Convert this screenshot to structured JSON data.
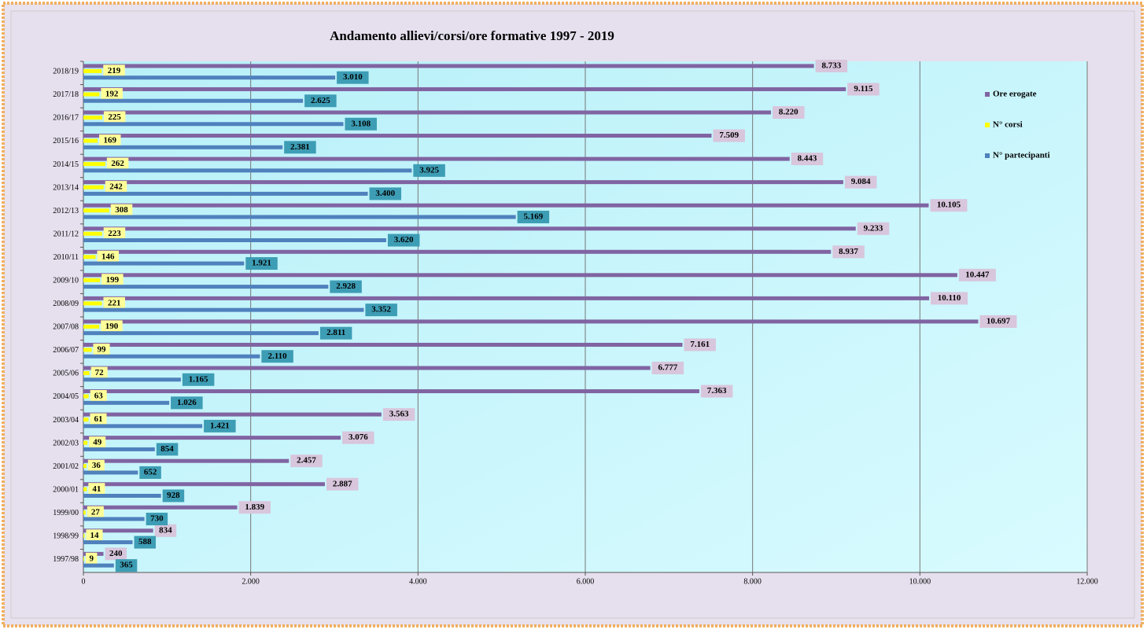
{
  "chart_data": {
    "type": "hbar",
    "title": "Andamento allievi/corsi/ore formative 1997 - 2019",
    "categories": [
      "1997/98",
      "1998/99",
      "1999/00",
      "2000/01",
      "2001/02",
      "2002/03",
      "2003/04",
      "2004/05",
      "2005/06",
      "2006/07",
      "2007/08",
      "2008/09",
      "2009/10",
      "2010/11",
      "2011/12",
      "2012/13",
      "2013/14",
      "2014/15",
      "2015/16",
      "2016/17",
      "2017/18",
      "2018/19"
    ],
    "series": [
      {
        "name": "Ore erogate",
        "color": "#8064a2",
        "values": [
          240,
          834,
          1839,
          2887,
          2457,
          3076,
          3563,
          7363,
          6777,
          7161,
          10697,
          10110,
          10447,
          8937,
          9233,
          10105,
          9084,
          8443,
          7509,
          8220,
          9115,
          8733
        ],
        "value_labels": [
          "240",
          "834",
          "1.839",
          "2.887",
          "2.457",
          "3.076",
          "3.563",
          "7.363",
          "6.777",
          "7.161",
          "10.697",
          "10.110",
          "10.447",
          "8.937",
          "9.233",
          "10.105",
          "9.084",
          "8.443",
          "7.509",
          "8.220",
          "9.115",
          "8.733"
        ]
      },
      {
        "name": "N° corsi",
        "color": "#ffff00",
        "values": [
          9,
          14,
          27,
          41,
          36,
          49,
          61,
          63,
          72,
          99,
          190,
          221,
          199,
          146,
          223,
          308,
          242,
          262,
          169,
          225,
          192,
          219
        ]
      },
      {
        "name": "N° partecipanti",
        "color": "#4f81bd",
        "values": [
          365,
          588,
          730,
          928,
          652,
          854,
          1421,
          1026,
          1165,
          2110,
          2811,
          3352,
          2928,
          1921,
          3620,
          5169,
          3400,
          3925,
          2381,
          3108,
          2625,
          3010
        ],
        "value_labels": [
          "365",
          "588",
          "730",
          "928",
          "652",
          "854",
          "1.421",
          "1.026",
          "1.165",
          "2.110",
          "2.811",
          "3.352",
          "2.928",
          "1.921",
          "3.620",
          "5.169",
          "3.400",
          "3.925",
          "2.381",
          "3.108",
          "2.625",
          "3.010"
        ]
      }
    ],
    "xlim": [
      0,
      12000
    ],
    "xticks": [
      0,
      {
        "value": 2000,
        "label": "2.000"
      },
      {
        "value": 4000,
        "label": "4.000"
      },
      {
        "value": 6000,
        "label": "6.000"
      },
      {
        "value": 8000,
        "label": "8.000"
      },
      {
        "value": 10000,
        "label": "10.000"
      },
      {
        "value": 12000,
        "label": "12.000"
      }
    ],
    "grid": true,
    "legend": "right"
  }
}
